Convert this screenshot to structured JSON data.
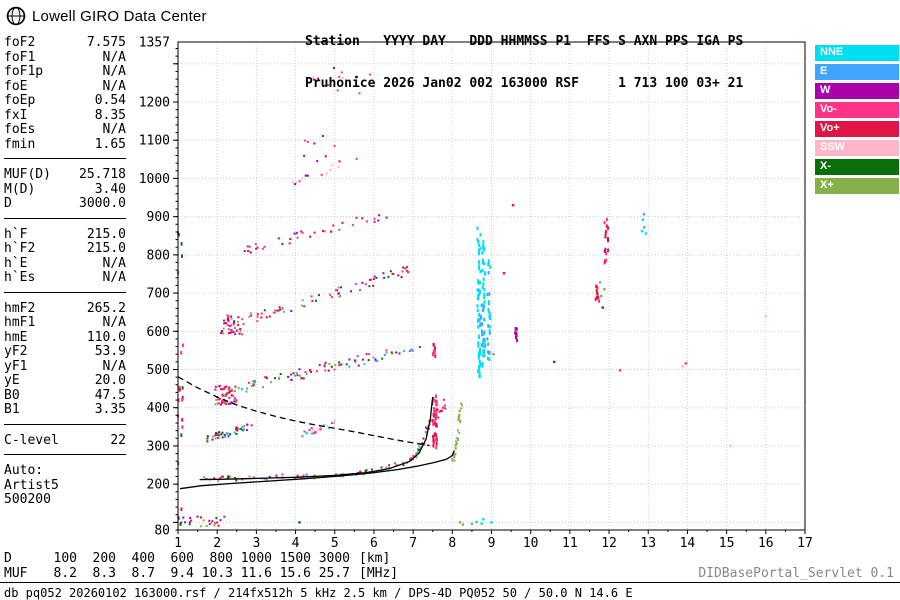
{
  "header": {
    "brand": "Lowell GIRO Data Center",
    "station_line1": "Station   YYYY DAY   DDD HHMMSS P1  FFS S AXN PPS IGA PS",
    "station_line2": "Pruhonice 2026 Jan02 002 163000 RSF     1 713 100 03+ 21"
  },
  "parameters": {
    "sections": [
      {
        "rows": [
          {
            "label": "foF2",
            "value": "7.575"
          },
          {
            "label": "foF1",
            "value": "N/A"
          },
          {
            "label": "foF1p",
            "value": "N/A"
          },
          {
            "label": "foE",
            "value": "N/A"
          },
          {
            "label": "foEp",
            "value": "0.54"
          },
          {
            "label": "fxI",
            "value": "8.35"
          },
          {
            "label": "foEs",
            "value": "N/A"
          },
          {
            "label": "fmin",
            "value": "1.65"
          }
        ]
      },
      {
        "rows": [
          {
            "label": "MUF(D)",
            "value": "25.718"
          },
          {
            "label": "M(D)",
            "value": "3.40"
          },
          {
            "label": "D",
            "value": "3000.0"
          }
        ]
      },
      {
        "rows": [
          {
            "label": "h`F",
            "value": "215.0"
          },
          {
            "label": "h`F2",
            "value": "215.0"
          },
          {
            "label": "h`E",
            "value": "N/A"
          },
          {
            "label": "h`Es",
            "value": "N/A"
          }
        ]
      },
      {
        "rows": [
          {
            "label": "hmF2",
            "value": "265.2"
          },
          {
            "label": "hmF1",
            "value": "N/A"
          },
          {
            "label": "hmE",
            "value": "110.0"
          },
          {
            "label": "yF2",
            "value": "53.9"
          },
          {
            "label": "yF1",
            "value": "N/A"
          },
          {
            "label": "yE",
            "value": "20.0"
          },
          {
            "label": "B0",
            "value": "47.5"
          },
          {
            "label": "B1",
            "value": "3.35"
          }
        ]
      },
      {
        "rows": [
          {
            "label": "C-level",
            "value": "22"
          }
        ]
      }
    ],
    "auto_block": [
      "Auto:",
      "Artist5",
      "500200"
    ]
  },
  "legend": [
    {
      "label": "NNE",
      "color": "#00dff0"
    },
    {
      "label": "E",
      "color": "#40a5ff"
    },
    {
      "label": "W",
      "color": "#aa00aa"
    },
    {
      "label": "Vo-",
      "color": "#ff3388"
    },
    {
      "label": "Vo+",
      "color": "#e01545"
    },
    {
      "label": "SSW",
      "color": "#ffb6c6"
    },
    {
      "label": "X-",
      "color": "#0b6e0b"
    },
    {
      "label": "X+",
      "color": "#85b14a"
    }
  ],
  "bottom": {
    "rows": [
      {
        "label": "D",
        "values": [
          "100",
          "200",
          "400",
          "600",
          "800",
          "1000",
          "1500",
          "3000"
        ],
        "unit": "[km]"
      },
      {
        "label": "MUF",
        "values": [
          "8.2",
          "8.3",
          "8.7",
          "9.4",
          "10.3",
          "11.6",
          "15.6",
          "25.7"
        ],
        "unit": "[MHz]"
      }
    ],
    "db_line": "db pq052 20260102 163000.rsf / 214fx512h 5 kHz 2.5 km / DPS-4D PQ052 50 / 50.0 N 14.6 E",
    "servlet": "DIDBasePortal_Servlet 0.1"
  },
  "chart_data": {
    "type": "scatter",
    "title": "Pruhonice 2026 Jan02 002 163000 RSF",
    "xlabel": "[MHz]",
    "ylabel": "[km]",
    "xlim": [
      1,
      17
    ],
    "ylim": [
      80,
      1357
    ],
    "x_ticks": [
      1,
      2,
      3,
      4,
      5,
      6,
      7,
      8,
      9,
      10,
      11,
      12,
      13,
      14,
      15,
      16,
      17
    ],
    "y_tick_labels": [
      1357,
      1200,
      1100,
      1000,
      900,
      800,
      700,
      600,
      500,
      400,
      300,
      200,
      80
    ],
    "grid": true,
    "legend_position": "top-right",
    "echo_colors": {
      "NNE": "#00dff0",
      "E": "#40a5ff",
      "W": "#aa00aa",
      "Vo-": "#ff3388",
      "Vo+": "#e01545",
      "SSW": "#ffb6c6",
      "X-": "#0b6e0b",
      "X+": "#85b14a"
    },
    "clusters": [
      {
        "name": "e-region-noise",
        "type": "blob",
        "x": [
          1.0,
          2.25
        ],
        "y": [
          88,
          116
        ],
        "n": 26,
        "colors": [
          "X-",
          "W",
          "X+",
          "Vo+"
        ]
      },
      {
        "name": "es-high-freq",
        "type": "points",
        "pts": [
          [
            8.2,
            100,
            "X+"
          ],
          [
            8.27,
            94,
            "X+"
          ],
          [
            8.5,
            96,
            "X+"
          ],
          [
            8.62,
            101,
            "NNE"
          ],
          [
            8.75,
            97,
            "NNE"
          ],
          [
            8.79,
            108,
            "NNE"
          ],
          [
            9.0,
            100,
            "NNE"
          ],
          [
            4.1,
            100,
            "X-"
          ]
        ]
      },
      {
        "name": "f-trace-echoes",
        "type": "curve",
        "pts": [
          [
            1.6,
            213
          ],
          [
            2.5,
            215
          ],
          [
            3.5,
            218
          ],
          [
            4.5,
            222
          ],
          [
            5.5,
            228
          ],
          [
            6.2,
            238
          ],
          [
            6.8,
            256
          ],
          [
            7.1,
            280
          ],
          [
            7.3,
            320
          ],
          [
            7.42,
            370
          ]
        ],
        "n": 95,
        "jx": 0.05,
        "jy": 7,
        "colors": [
          "Vo+",
          "X+",
          "W",
          "Vo-",
          "X-",
          "E"
        ]
      },
      {
        "name": "f-cusp-o-mode",
        "type": "column",
        "x": 7.55,
        "y": [
          295,
          432
        ],
        "n": 42,
        "jx": 0.06,
        "colors": [
          "Vo+",
          "Vo-"
        ]
      },
      {
        "name": "f-cusp-o-upper",
        "type": "column",
        "x": 7.52,
        "y": [
          535,
          600
        ],
        "n": 8,
        "jx": 0.05,
        "colors": [
          "Vo+",
          "Vo-"
        ]
      },
      {
        "name": "f-cusp-aux",
        "type": "blob",
        "x": [
          7.6,
          7.92
        ],
        "y": [
          355,
          430
        ],
        "n": 12,
        "colors": [
          "Vo+",
          "Vo-"
        ]
      },
      {
        "name": "x-cusp-green",
        "type": "curve",
        "pts": [
          [
            8.02,
            262
          ],
          [
            8.07,
            282
          ],
          [
            8.11,
            305
          ],
          [
            8.14,
            330
          ],
          [
            8.17,
            360
          ],
          [
            8.2,
            392
          ],
          [
            8.23,
            420
          ]
        ],
        "n": 34,
        "jx": 0.03,
        "jy": 6,
        "colors": [
          "X+"
        ]
      },
      {
        "name": "stripe-low",
        "type": "band",
        "p1": [
          1.68,
          316
        ],
        "p2": [
          2.9,
          352
        ],
        "n": 44,
        "jx": 0.05,
        "jy": 9,
        "colors": [
          "X+",
          "Vo+",
          "X-",
          "W",
          "E"
        ]
      },
      {
        "name": "stripe-cyan",
        "type": "band",
        "p1": [
          4.2,
          330
        ],
        "p2": [
          5.1,
          362
        ],
        "n": 26,
        "jx": 0.05,
        "jy": 8,
        "colors": [
          "NNE",
          "SSW",
          "Vo-"
        ]
      },
      {
        "name": "hop2-dense",
        "type": "blob",
        "x": [
          1.95,
          2.5
        ],
        "y": [
          406,
          458
        ],
        "n": 60,
        "colors": [
          "Vo+",
          "Vo-",
          "W",
          "X+"
        ]
      },
      {
        "name": "hop2-band",
        "type": "band",
        "p1": [
          2.5,
          450
        ],
        "p2": [
          7.2,
          562
        ],
        "n": 85,
        "jx": 0.06,
        "jy": 14,
        "colors": [
          "Vo+",
          "Vo-",
          "W",
          "X+",
          "E",
          "X-"
        ]
      },
      {
        "name": "hop3-dense",
        "type": "blob",
        "x": [
          2.1,
          2.65
        ],
        "y": [
          588,
          642
        ],
        "n": 42,
        "colors": [
          "Vo+",
          "Vo-",
          "W",
          "X+"
        ]
      },
      {
        "name": "hop3-band",
        "type": "band",
        "p1": [
          2.65,
          628
        ],
        "p2": [
          6.9,
          758
        ],
        "n": 68,
        "jx": 0.06,
        "jy": 14,
        "colors": [
          "Vo+",
          "Vo-",
          "W",
          "X+",
          "X-"
        ]
      },
      {
        "name": "hop4-band",
        "type": "band",
        "p1": [
          2.75,
          812
        ],
        "p2": [
          6.4,
          908
        ],
        "n": 38,
        "jx": 0.06,
        "jy": 13,
        "colors": [
          "Vo-",
          "Vo+",
          "W"
        ]
      },
      {
        "name": "hop5-band",
        "type": "band",
        "p1": [
          3.9,
          988
        ],
        "p2": [
          5.7,
          1058
        ],
        "n": 15,
        "jx": 0.05,
        "jy": 12,
        "colors": [
          "Vo-",
          "W",
          "SSW"
        ]
      },
      {
        "name": "top-specks-high",
        "type": "blob",
        "x": [
          4.4,
          5.9
        ],
        "y": [
          1185,
          1300
        ],
        "n": 12,
        "colors": [
          "Vo-",
          "SSW",
          "W"
        ]
      },
      {
        "name": "top-specks-mid",
        "type": "blob",
        "x": [
          4.2,
          5.0
        ],
        "y": [
          1040,
          1115
        ],
        "n": 8,
        "colors": [
          "Vo-",
          "W"
        ]
      },
      {
        "name": "spread-f-cyan-1",
        "type": "column",
        "x": 8.68,
        "y": [
          480,
          878
        ],
        "n": 55,
        "jx": 0.04,
        "colors": [
          "NNE"
        ]
      },
      {
        "name": "spread-f-cyan-2",
        "type": "column",
        "x": 8.8,
        "y": [
          500,
          860
        ],
        "n": 38,
        "jx": 0.04,
        "colors": [
          "NNE"
        ]
      },
      {
        "name": "spread-f-cyan-3",
        "type": "column",
        "x": 8.93,
        "y": [
          525,
          800
        ],
        "n": 26,
        "jx": 0.04,
        "colors": [
          "NNE",
          "E"
        ]
      },
      {
        "name": "spread-f-blue",
        "type": "column",
        "x": 8.75,
        "y": [
          545,
          760
        ],
        "n": 12,
        "jx": 0.05,
        "colors": [
          "E"
        ]
      },
      {
        "name": "red-9-6",
        "type": "column",
        "x": 9.62,
        "y": [
          565,
          622
        ],
        "n": 8,
        "jx": 0.04,
        "colors": [
          "Vo+",
          "W"
        ]
      },
      {
        "name": "hop2-cusp-red-a",
        "type": "column",
        "x": 11.7,
        "y": [
          672,
          732
        ],
        "n": 10,
        "jx": 0.05,
        "colors": [
          "Vo+",
          "Vo-"
        ]
      },
      {
        "name": "hop2-cusp-red-b",
        "type": "column",
        "x": 11.93,
        "y": [
          778,
          906
        ],
        "n": 16,
        "jx": 0.05,
        "colors": [
          "Vo+",
          "Vo-",
          "W"
        ]
      },
      {
        "name": "hop2-cusp-green",
        "type": "points",
        "pts": [
          [
            11.8,
            692,
            "X+"
          ],
          [
            11.84,
            662,
            "X-"
          ],
          [
            11.77,
            728,
            "X+"
          ],
          [
            11.88,
            710,
            "X+"
          ]
        ]
      },
      {
        "name": "cyan-12-9",
        "type": "points",
        "pts": [
          [
            12.86,
            892,
            "NNE"
          ],
          [
            12.9,
            872,
            "E"
          ],
          [
            12.94,
            856,
            "NNE"
          ],
          [
            12.89,
            906,
            "E"
          ],
          [
            12.84,
            862,
            "NNE"
          ]
        ]
      },
      {
        "name": "left-interference",
        "type": "column",
        "x": 1.06,
        "y": [
          95,
          955
        ],
        "n": 22,
        "jx": 0.07,
        "colors": [
          "Vo+",
          "Vo-",
          "X-"
        ]
      },
      {
        "name": "stray-echoes",
        "type": "points",
        "pts": [
          [
            13.88,
            508,
            "SSW"
          ],
          [
            13.96,
            516,
            "Vo-"
          ],
          [
            9.32,
            752,
            "Vo+"
          ],
          [
            9.55,
            930,
            "Vo+"
          ],
          [
            9.05,
            540,
            "X+"
          ],
          [
            12.28,
            498,
            "Vo-"
          ],
          [
            10.6,
            520,
            "W"
          ],
          [
            15.1,
            300,
            "SSW"
          ],
          [
            16.0,
            640,
            "SSW"
          ]
        ]
      }
    ],
    "traces": [
      {
        "name": "artist-o-trace",
        "style": "solid",
        "points": [
          [
            1.55,
            212
          ],
          [
            2.2,
            213
          ],
          [
            3.0,
            215
          ],
          [
            4.0,
            218
          ],
          [
            5.0,
            223
          ],
          [
            5.8,
            230
          ],
          [
            6.4,
            241
          ],
          [
            6.9,
            259
          ],
          [
            7.15,
            281
          ],
          [
            7.33,
            318
          ],
          [
            7.44,
            372
          ],
          [
            7.5,
            428
          ]
        ]
      },
      {
        "name": "profile-curve",
        "style": "solid",
        "points": [
          [
            1.05,
            188
          ],
          [
            1.6,
            196
          ],
          [
            2.4,
            202
          ],
          [
            3.3,
            208
          ],
          [
            4.2,
            214
          ],
          [
            5.1,
            221
          ],
          [
            5.9,
            229
          ],
          [
            6.6,
            238
          ],
          [
            7.1,
            247
          ],
          [
            7.55,
            257
          ],
          [
            7.85,
            265
          ],
          [
            8.0,
            275
          ],
          [
            8.05,
            288
          ]
        ]
      },
      {
        "name": "transmission-curve",
        "style": "dashed",
        "points": [
          [
            1.0,
            481
          ],
          [
            1.5,
            452
          ],
          [
            2.0,
            428
          ],
          [
            2.5,
            407
          ],
          [
            3.0,
            391
          ],
          [
            3.5,
            377
          ],
          [
            4.0,
            365
          ],
          [
            4.5,
            355
          ],
          [
            5.0,
            346
          ],
          [
            5.5,
            337
          ],
          [
            6.0,
            327
          ],
          [
            6.5,
            317
          ],
          [
            7.0,
            308
          ],
          [
            7.42,
            301
          ]
        ]
      }
    ]
  }
}
